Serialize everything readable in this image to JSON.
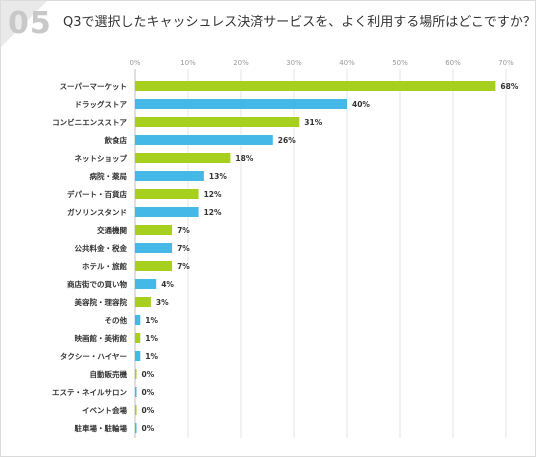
{
  "header": {
    "question_number": "05",
    "title": "Q3で選択したキャッシュレス決済サービスを、よく利用する場所はどこですか？"
  },
  "colors": {
    "green": "#a6cf1e",
    "blue": "#44b8e6",
    "grid": "#e4e4e4",
    "axis": "#bfbfbf"
  },
  "chart_data": {
    "type": "bar",
    "orientation": "horizontal",
    "title": "Q3で選択したキャッシュレス決済サービスを、よく利用する場所はどこですか？",
    "xlim": [
      0,
      70
    ],
    "ticks": [
      0,
      10,
      20,
      30,
      40,
      50,
      60,
      70
    ],
    "tick_labels": [
      "0%",
      "10%",
      "20%",
      "30%",
      "40%",
      "50%",
      "60%",
      "70%"
    ],
    "grid": true,
    "categories": [
      "スーパーマーケット",
      "ドラッグストア",
      "コンビニエンスストア",
      "飲食店",
      "ネットショップ",
      "病院・薬局",
      "デパート・百貨店",
      "ガソリンスタンド",
      "交通機関",
      "公共料金・税金",
      "ホテル・旅館",
      "商店街での買い物",
      "美容院・理容院",
      "その他",
      "映画館・美術館",
      "タクシー・ハイヤー",
      "自動販売機",
      "エステ・ネイルサロン",
      "イベント会場",
      "駐車場・駐輪場"
    ],
    "values": [
      68,
      40,
      31,
      26,
      18,
      13,
      12,
      12,
      7,
      7,
      7,
      4,
      3,
      1,
      1,
      1,
      0,
      0,
      0,
      0
    ],
    "value_labels": [
      "68%",
      "40%",
      "31%",
      "26%",
      "18%",
      "13%",
      "12%",
      "12%",
      "7%",
      "7%",
      "7%",
      "4%",
      "3%",
      "1%",
      "1%",
      "1%",
      "0%",
      "0%",
      "0%",
      "0%"
    ],
    "bar_colors": [
      "green",
      "blue",
      "green",
      "blue",
      "green",
      "blue",
      "green",
      "blue",
      "green",
      "blue",
      "green",
      "blue",
      "green",
      "blue",
      "green",
      "blue",
      "green",
      "blue",
      "green",
      "blue"
    ]
  }
}
